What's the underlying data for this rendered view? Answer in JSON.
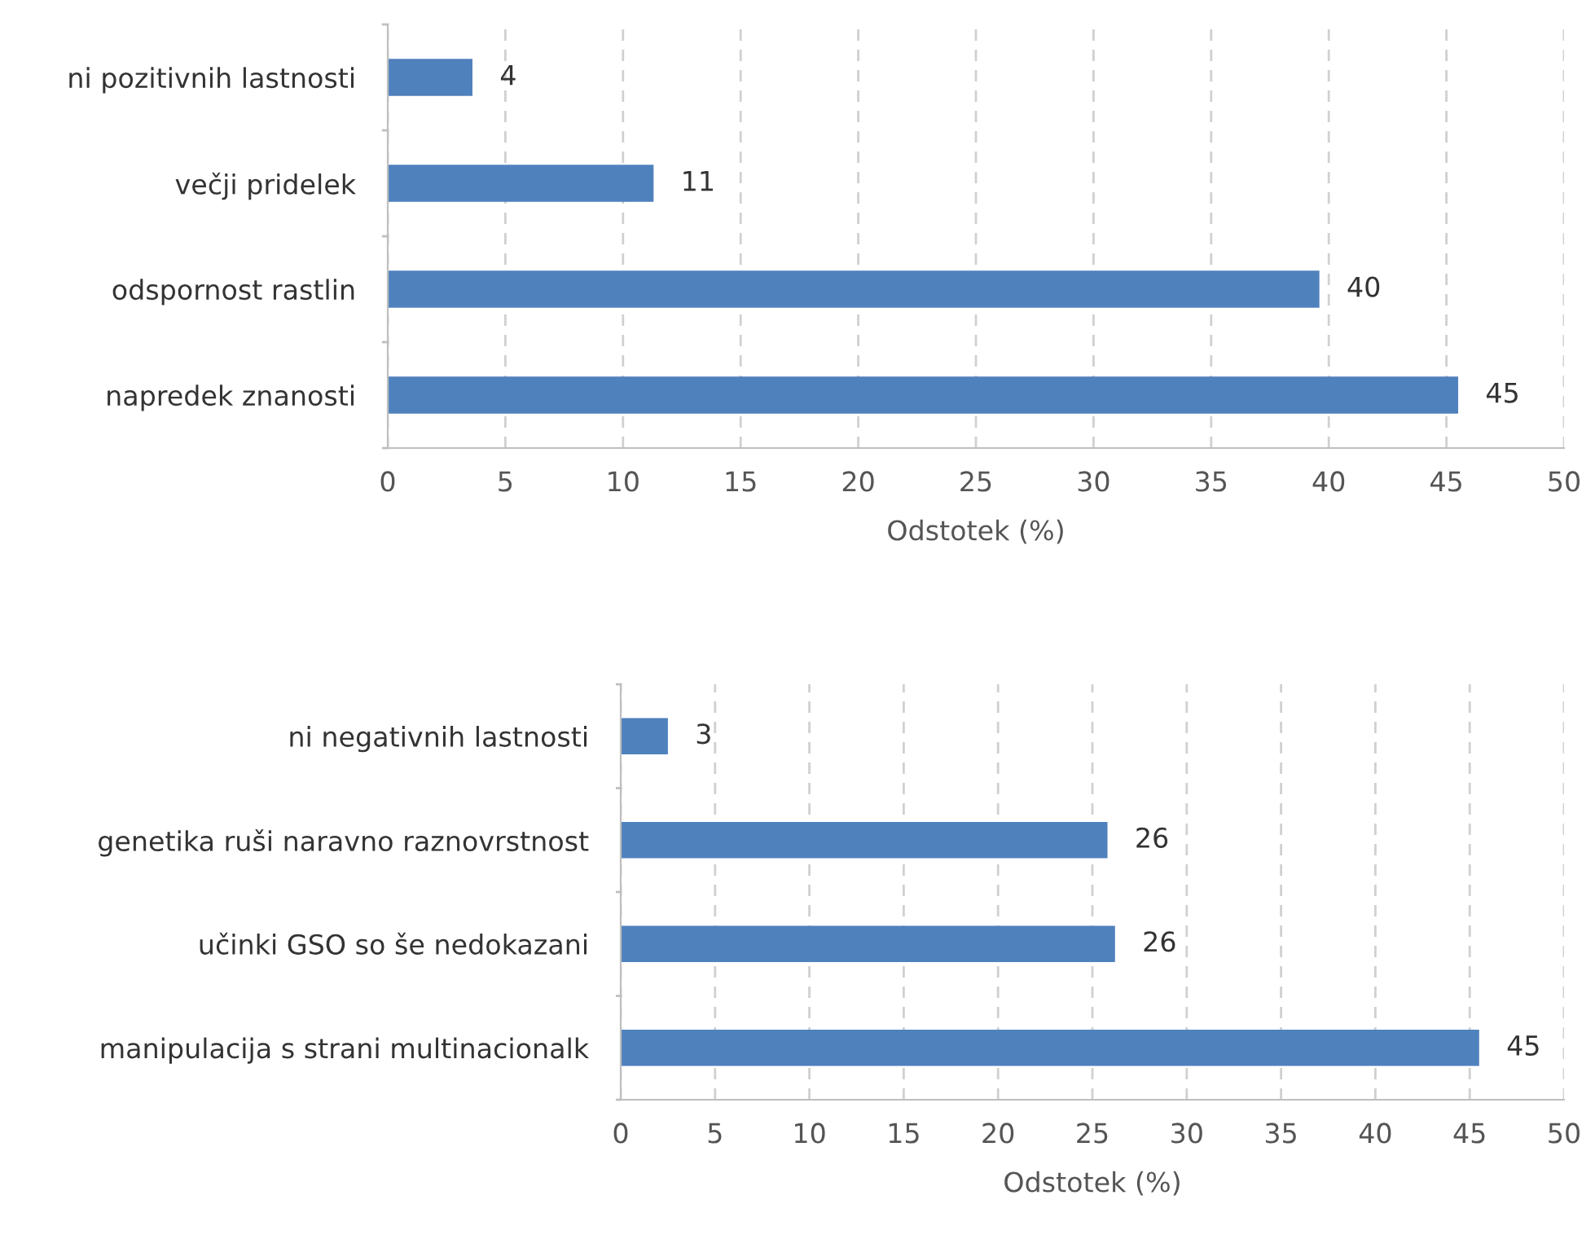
{
  "chart_data": [
    {
      "type": "bar",
      "orientation": "horizontal",
      "xlabel": "Odstotek (%)",
      "categories": [
        "ni pozitivnih lastnosti",
        "večji pridelek",
        "odspornost rastlin",
        "napredek znanosti"
      ],
      "values": [
        3.6,
        11.3,
        39.6,
        45.5
      ],
      "value_labels": [
        "4",
        "11",
        "40",
        "45"
      ],
      "color": "#4f81bd",
      "xlim": [
        0,
        50
      ],
      "xticks": [
        0,
        5,
        10,
        15,
        20,
        25,
        30,
        35,
        40,
        45,
        50
      ],
      "grid": "x"
    },
    {
      "type": "bar",
      "orientation": "horizontal",
      "xlabel": "Odstotek (%)",
      "categories": [
        "ni negativnih lastnosti",
        "genetika ruši naravno raznovrstnost",
        "učinki GSO so še nedokazani",
        "manipulacija s strani multinacionalk"
      ],
      "values": [
        2.5,
        25.8,
        26.2,
        45.5
      ],
      "value_labels": [
        "3",
        "26",
        "26",
        "45"
      ],
      "color": "#4f81bd",
      "xlim": [
        0,
        50
      ],
      "xticks": [
        0,
        5,
        10,
        15,
        20,
        25,
        30,
        35,
        40,
        45,
        50
      ],
      "grid": "x"
    }
  ]
}
